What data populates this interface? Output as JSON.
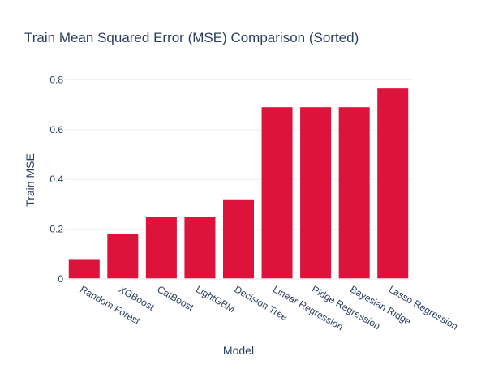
{
  "chart_data": {
    "type": "bar",
    "title": "Train Mean Squared Error (MSE) Comparison (Sorted)",
    "xlabel": "Model",
    "ylabel": "Train MSE",
    "categories": [
      "Random Forest",
      "XGBoost",
      "CatBoost",
      "LightGBM",
      "Decision Tree",
      "Linear Regression",
      "Ridge Regression",
      "Bayesian Ridge",
      "Lasso Regression"
    ],
    "series": [
      {
        "values": [
          0.08,
          0.18,
          0.25,
          0.25,
          0.32,
          0.69,
          0.69,
          0.69,
          0.765
        ]
      }
    ],
    "ylim": [
      0,
      0.86
    ],
    "yticks": [
      0,
      0.2,
      0.4,
      0.6,
      0.8
    ],
    "ytick_labels": [
      "0",
      "0.2",
      "0.4",
      "0.6",
      "0.8"
    ],
    "grid": true,
    "legend": "none",
    "bar_color": "#dc143c"
  }
}
